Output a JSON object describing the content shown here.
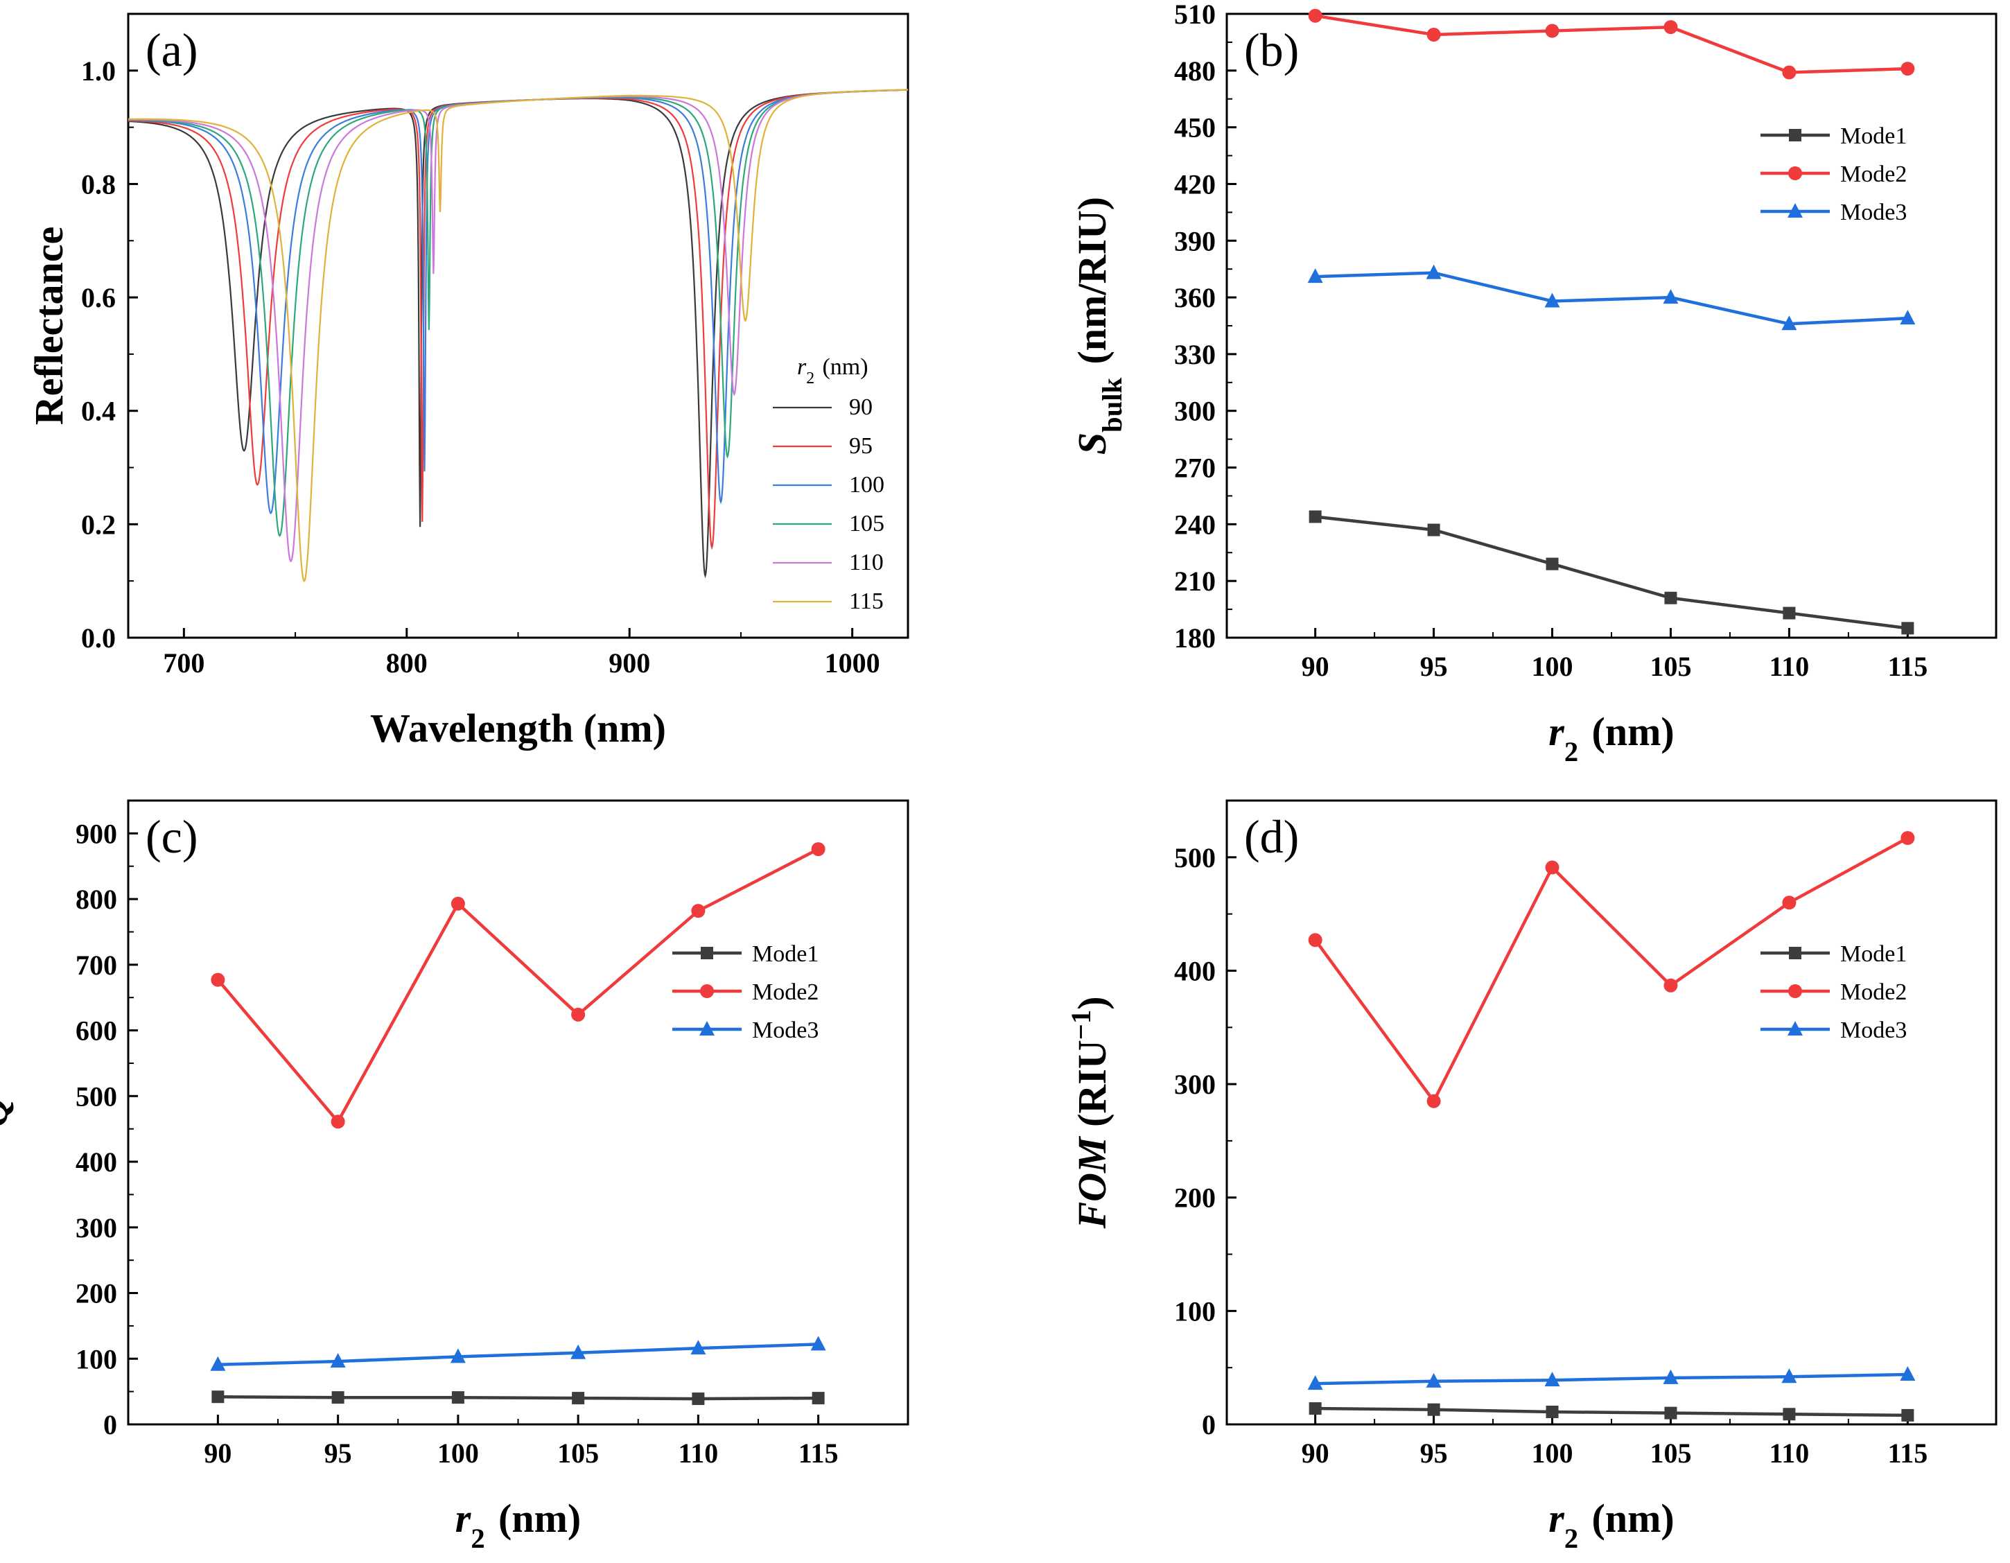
{
  "chart_data": [
    {
      "panel": "a",
      "panel_label": "(a)",
      "type": "line",
      "xlabel": "Wavelength (nm)",
      "ylabel": "Reflectance",
      "xlim": [
        675,
        1025
      ],
      "ylim": [
        0.0,
        1.1
      ],
      "xticks": [
        700,
        800,
        900,
        1000
      ],
      "yticks": [
        0.0,
        0.2,
        0.4,
        0.6,
        0.8,
        1.0
      ],
      "ytick_format": 1,
      "legend_title": {
        "var": "r",
        "sub": "2",
        "unit": " (nm)"
      },
      "legend_position": "right",
      "series": [
        {
          "name": "90",
          "color": "#3a3a3a",
          "dip1": [
            727,
            0.33
          ],
          "dip2": [
            806,
            0.2
          ],
          "dip3": [
            934,
            0.11
          ]
        },
        {
          "name": "95",
          "color": "#ef3b3b",
          "dip1": [
            733,
            0.27
          ],
          "dip2": [
            807,
            0.21
          ],
          "dip3": [
            937,
            0.16
          ]
        },
        {
          "name": "100",
          "color": "#3b7ddd",
          "dip1": [
            739,
            0.22
          ],
          "dip2": [
            808,
            0.3
          ],
          "dip3": [
            941,
            0.24
          ]
        },
        {
          "name": "105",
          "color": "#2ca87a",
          "dip1": [
            743,
            0.18
          ],
          "dip2": [
            810,
            0.55
          ],
          "dip3": [
            944,
            0.32
          ]
        },
        {
          "name": "110",
          "color": "#cc77dd",
          "dip1": [
            748,
            0.135
          ],
          "dip2": [
            812,
            0.65
          ],
          "dip3": [
            947,
            0.43
          ]
        },
        {
          "name": "115",
          "color": "#e0b23a",
          "dip1": [
            754,
            0.1
          ],
          "dip2": [
            815,
            0.76
          ],
          "dip3": [
            952,
            0.56
          ]
        }
      ]
    },
    {
      "panel": "b",
      "panel_label": "(b)",
      "type": "line",
      "xlabel": {
        "var": "r",
        "sub": "2",
        "unit": " (nm)"
      },
      "ylabel": {
        "var": "S",
        "sub": "bulk",
        "unit": " (nm/RIU)"
      },
      "categories": [
        "90",
        "95",
        "100",
        "105",
        "110",
        "115"
      ],
      "ylim": [
        180,
        510
      ],
      "yticks": [
        180,
        210,
        240,
        270,
        300,
        330,
        360,
        390,
        420,
        450,
        480,
        510
      ],
      "ytick_format": 0,
      "legend_position": "top-right",
      "series": [
        {
          "name": "Mode1",
          "color": "#3d3d3d",
          "marker": "square",
          "values": [
            244,
            237,
            219,
            201,
            193,
            185
          ]
        },
        {
          "name": "Mode2",
          "color": "#ef3b3b",
          "marker": "circle",
          "values": [
            509,
            499,
            501,
            503,
            479,
            481
          ]
        },
        {
          "name": "Mode3",
          "color": "#1f6fdc",
          "marker": "triangle",
          "values": [
            371,
            373,
            358,
            360,
            346,
            349
          ]
        }
      ]
    },
    {
      "panel": "c",
      "panel_label": "(c)",
      "type": "line",
      "xlabel": {
        "var": "r",
        "sub": "2",
        "unit": " (nm)"
      },
      "ylabel": {
        "var": "Q"
      },
      "categories": [
        "90",
        "95",
        "100",
        "105",
        "110",
        "115"
      ],
      "ylim": [
        0,
        950
      ],
      "yticks": [
        0,
        100,
        200,
        300,
        400,
        500,
        600,
        700,
        800,
        900
      ],
      "ytick_format": 0,
      "legend_position": "top-right",
      "series": [
        {
          "name": "Mode1",
          "color": "#3d3d3d",
          "marker": "square",
          "values": [
            42,
            41,
            41,
            40,
            39,
            40
          ]
        },
        {
          "name": "Mode2",
          "color": "#ef3b3b",
          "marker": "circle",
          "values": [
            677,
            461,
            793,
            624,
            782,
            876
          ]
        },
        {
          "name": "Mode3",
          "color": "#1f6fdc",
          "marker": "triangle",
          "values": [
            91,
            96,
            103,
            109,
            116,
            122
          ]
        }
      ]
    },
    {
      "panel": "d",
      "panel_label": "(d)",
      "type": "line",
      "xlabel": {
        "var": "r",
        "sub": "2",
        "unit": " (nm)"
      },
      "ylabel": {
        "var": "FOM",
        "unit": " (RIU",
        "sup": "−1",
        "close": ")"
      },
      "categories": [
        "90",
        "95",
        "100",
        "105",
        "110",
        "115"
      ],
      "ylim": [
        0,
        550
      ],
      "yticks": [
        0,
        100,
        200,
        300,
        400,
        500
      ],
      "ytick_format": 0,
      "legend_position": "top-right",
      "series": [
        {
          "name": "Mode1",
          "color": "#3d3d3d",
          "marker": "square",
          "values": [
            14,
            13,
            11,
            10,
            9,
            8
          ]
        },
        {
          "name": "Mode2",
          "color": "#ef3b3b",
          "marker": "circle",
          "values": [
            427,
            285,
            491,
            387,
            460,
            517
          ]
        },
        {
          "name": "Mode3",
          "color": "#1f6fdc",
          "marker": "triangle",
          "values": [
            36,
            38,
            39,
            41,
            42,
            44
          ]
        }
      ]
    }
  ]
}
